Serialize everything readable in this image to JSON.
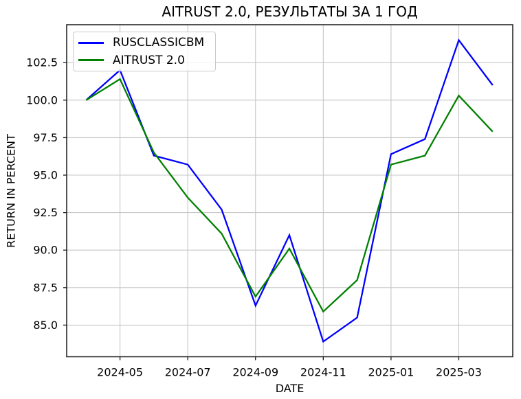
{
  "title": "AITRUST 2.0, РЕЗУЛЬТАТЫ ЗА 1 ГОД",
  "chart_data": {
    "type": "line",
    "title": "AITRUST 2.0, РЕЗУЛЬТАТЫ ЗА 1 ГОД",
    "xlabel": "DATE",
    "ylabel": "RETURN IN PERCENT",
    "categories": [
      "2024-04",
      "2024-05",
      "2024-06",
      "2024-07",
      "2024-08",
      "2024-09",
      "2024-10",
      "2024-11",
      "2024-12",
      "2025-01",
      "2025-02",
      "2025-03",
      "2025-04"
    ],
    "x_tick_labels": [
      "2024-05",
      "2024-07",
      "2024-09",
      "2024-11",
      "2025-01",
      "2025-03"
    ],
    "x_tick_month_indexes": [
      1,
      3,
      5,
      7,
      9,
      11
    ],
    "y_ticks": [
      85.0,
      87.5,
      90.0,
      92.5,
      95.0,
      97.5,
      100.0,
      102.5
    ],
    "ylim": [
      82.9,
      105.1
    ],
    "grid": true,
    "legend_position": "upper left",
    "series": [
      {
        "name": "RUSCLASSICBM",
        "color": "#0000ff",
        "values": [
          100.0,
          102.0,
          96.3,
          95.7,
          92.7,
          86.3,
          91.0,
          83.9,
          85.5,
          96.4,
          97.4,
          104.0,
          101.0
        ]
      },
      {
        "name": "AITRUST 2.0",
        "color": "#008000",
        "values": [
          100.0,
          101.4,
          96.5,
          93.5,
          91.1,
          86.9,
          90.1,
          85.9,
          88.0,
          95.7,
          96.3,
          100.3,
          97.9
        ]
      }
    ]
  },
  "colors": {
    "grid": "#c6c6c6",
    "spine": "#1a1a1a",
    "tick_text": "#000000",
    "background": "#ffffff"
  }
}
